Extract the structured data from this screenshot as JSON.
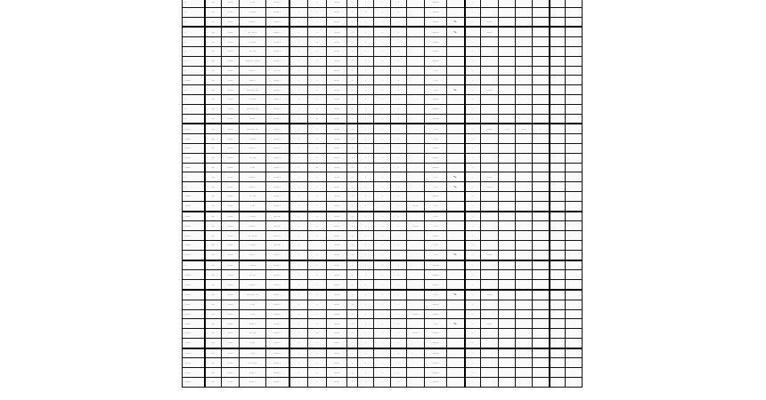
{
  "table": {
    "rows": [
      [
        "- -",
        "—",
        "——",
        "- —",
        "—— -",
        "",
        "-",
        "——",
        "-",
        "-",
        "-",
        "-",
        "",
        "——-",
        "",
        "-",
        "",
        "",
        "",
        "",
        "",
        ""
      ],
      [
        "- -",
        "—",
        "——",
        "- ——",
        "—— -",
        "-",
        "-",
        "——",
        "-",
        "-",
        "-",
        "-",
        "",
        "——-",
        "",
        "-",
        "",
        "",
        "",
        "",
        "",
        ""
      ],
      [
        "- -",
        "—",
        "——",
        "—— -",
        "—— -",
        "-",
        "-",
        "——",
        "-",
        "-",
        "-",
        "-",
        "",
        "——-",
        "%-",
        "-",
        "——",
        "",
        "",
        "",
        "",
        ""
      ],
      [
        "- -",
        "—",
        "——",
        "— ——",
        "—— -",
        "-",
        "-",
        "——",
        "-",
        "-",
        "-",
        "-",
        "",
        "——-",
        "%-",
        "",
        "——",
        "",
        "",
        "",
        "",
        ""
      ],
      [
        "- -",
        "—",
        "——",
        "- ——",
        "—— -",
        "-",
        "--",
        "——",
        "-",
        "-",
        "-",
        "-",
        "",
        "——-",
        "",
        "-",
        "",
        "",
        "",
        "",
        "",
        ""
      ],
      [
        "- -",
        "—",
        "——",
        "— —",
        "—— -",
        "-",
        "-",
        "——",
        "-",
        "-",
        "-",
        "-",
        "",
        "——-",
        "",
        "-",
        "",
        "",
        "",
        "",
        "",
        ""
      ],
      [
        "- -",
        "—",
        "——",
        "——— ——",
        "—— -",
        "-",
        "-",
        "——",
        "-",
        "-",
        "-",
        "-",
        "",
        "——-",
        "",
        "-",
        "",
        "",
        "",
        "",
        "",
        ""
      ],
      [
        "- -",
        "—",
        "——",
        "—— -",
        "— —",
        "-",
        "",
        "——",
        "-",
        "-",
        "-",
        "-",
        "",
        "- —",
        "",
        "-",
        "",
        "",
        "",
        "",
        "",
        ""
      ],
      [
        "- ——",
        "—",
        "——",
        "—— -",
        "—— -",
        "-",
        "-",
        "——",
        "-",
        "-",
        "-",
        "-",
        "",
        "- —",
        "",
        "-",
        "",
        "",
        "",
        "",
        "",
        ""
      ],
      [
        "- -",
        "—",
        "——",
        "——— —",
        "—— -",
        "-",
        "-",
        "——",
        "-",
        "-",
        "-",
        "-",
        "",
        "- —",
        "%-",
        "-",
        "——",
        "",
        "",
        "",
        "",
        ""
      ],
      [
        "- -",
        "—",
        "——",
        "- ——",
        "—— -",
        "-",
        "-",
        "——",
        "-",
        "-",
        "-",
        "-",
        "",
        "——-",
        "",
        "-",
        "",
        "",
        "",
        "",
        "",
        ""
      ],
      [
        "- -",
        "—",
        "——",
        "——— —",
        "—— -",
        "-",
        "-",
        "——",
        "-",
        "-",
        "-",
        "-",
        "",
        "——-",
        "",
        "-",
        "",
        "",
        "",
        "",
        "",
        ""
      ],
      [
        "- -",
        "—",
        "——",
        "——",
        "—— -",
        "-",
        "--",
        "——",
        "-",
        "-",
        "-",
        "-",
        "",
        "——-",
        "",
        "-",
        "",
        "",
        "",
        "",
        "",
        ""
      ],
      [
        "- ——",
        "—",
        "——",
        "——— —",
        "—— -",
        "-",
        "-",
        "——",
        "-",
        "-",
        "-",
        "-",
        "",
        "- —",
        "",
        "-",
        "——",
        "- —",
        "——",
        "-",
        "",
        ""
      ],
      [
        "- ——",
        "—",
        "——",
        "- ——",
        "—— -",
        "-",
        "-",
        "——",
        "-",
        "-",
        "-",
        "-",
        "",
        "- —",
        "",
        "-",
        "",
        "",
        "",
        "",
        "",
        ""
      ],
      [
        "- ——",
        "—",
        "——",
        "—— -",
        "—— -",
        "-",
        "-",
        "——",
        "-",
        "-",
        "-",
        "-",
        "",
        "——-",
        "",
        "-",
        "",
        "",
        "",
        "",
        "",
        ""
      ],
      [
        "- ——",
        "—",
        "——",
        "— —",
        "—— -",
        "-",
        "-",
        "——",
        "-",
        "-",
        "-",
        "-",
        "",
        "——-",
        "",
        "-",
        "",
        "",
        "",
        "",
        "",
        ""
      ],
      [
        "- ——",
        "—",
        "——",
        "- —",
        "—— -",
        "-",
        "--",
        "——",
        "-",
        "-",
        "-",
        "-",
        "",
        "——-",
        "",
        "-",
        "",
        "",
        "",
        "",
        "",
        ""
      ],
      [
        "- -",
        "—",
        "——",
        "—— -",
        "—— -",
        "-",
        "-",
        "——",
        "-",
        "-",
        "-",
        "-",
        "",
        "- —",
        "%-",
        "-",
        "——",
        "",
        "",
        "",
        "",
        ""
      ],
      [
        "- -",
        "—",
        "——",
        "—— -",
        "—— -",
        "-",
        "-",
        "——",
        "-",
        "-",
        "-",
        "-",
        "",
        "- —",
        "%-",
        "-",
        "——",
        "",
        "",
        "",
        "",
        ""
      ],
      [
        "- ——",
        "—",
        "——",
        "— —",
        "—— -",
        "-",
        "-",
        "——",
        "-",
        "-",
        "-",
        "-",
        "",
        "——-",
        "",
        "-",
        "",
        "",
        "",
        "",
        "",
        ""
      ],
      [
        "- ——",
        "—",
        "——",
        "- —",
        "—— -",
        "-",
        "-",
        "——",
        "-",
        "-",
        "-",
        "-",
        "——",
        "- —",
        "",
        "-",
        "",
        "",
        "",
        "",
        "",
        ""
      ],
      [
        "- ——",
        "—",
        "——",
        "- ——",
        "— —",
        "-",
        "-",
        "——",
        "-",
        "-",
        "-",
        "-",
        "",
        "- —",
        "",
        "-",
        "",
        "",
        "",
        "",
        "",
        ""
      ],
      [
        "- ——",
        "—",
        "——",
        "—— -",
        "— —",
        "-",
        "-",
        "——",
        "-",
        "-",
        "-",
        "-",
        "——",
        "- —",
        "",
        "-",
        "",
        "",
        "",
        "",
        "",
        ""
      ],
      [
        "- ——",
        "—",
        "——",
        "— ——",
        "—— -",
        "-",
        "-",
        "——",
        "-",
        "-",
        "-",
        "-",
        "",
        "——-",
        "",
        "-",
        "",
        "",
        "",
        "",
        "",
        ""
      ],
      [
        "- ——",
        "—",
        "——",
        "- ——",
        "— —",
        "-",
        "",
        "——",
        "-",
        "-",
        "-",
        "-",
        "",
        "- —",
        "",
        "-",
        "",
        "",
        "",
        "",
        "",
        ""
      ],
      [
        "- ——",
        "—",
        "——",
        "—— -",
        "—— -",
        "-",
        "-",
        "——",
        "-",
        "-",
        "-",
        "-",
        "",
        "- —",
        "%-",
        "-",
        "——",
        "",
        "",
        "",
        "",
        ""
      ],
      [
        "- -",
        "—",
        "——",
        "- ——",
        "—— -",
        "-",
        "-",
        "——",
        "-",
        "-",
        "-",
        "-",
        "",
        "——-",
        "",
        "-",
        "",
        "",
        "",
        "",
        "",
        ""
      ],
      [
        "- ——",
        "—",
        "——",
        "— —",
        "—— -",
        "-",
        "-",
        "——",
        "-",
        "-",
        "-",
        "-",
        "",
        "——-",
        "",
        "-",
        "",
        "",
        "",
        "",
        "",
        ""
      ],
      [
        "- ——",
        "—",
        "——",
        "—— -",
        "—— -",
        "-",
        "-",
        "——",
        "-",
        "-",
        "-",
        "-",
        "",
        "——-",
        "",
        "-",
        "",
        "",
        "",
        "",
        "",
        ""
      ],
      [
        "- ——",
        "—",
        "——",
        "——— —",
        "—— -",
        "-",
        "-",
        "——",
        "-",
        "-",
        "-",
        "-",
        "",
        "- —",
        "%-",
        "-",
        "——",
        "",
        "",
        "",
        "",
        ""
      ],
      [
        "- ——",
        "—",
        "——",
        "- —",
        "—— -",
        "-",
        "-",
        "——",
        "-",
        "-",
        "-",
        "-",
        "",
        "——-",
        "",
        "-",
        "",
        "",
        "",
        "",
        "",
        ""
      ],
      [
        "- ——",
        "—",
        "——",
        "- —",
        "—— -",
        "-",
        "-",
        "——",
        "-",
        "-",
        "-",
        "-",
        "——",
        "——-",
        "",
        "-",
        "",
        "",
        "",
        "",
        "",
        ""
      ],
      [
        "- ——",
        "—",
        "——",
        "—— -",
        "—— -",
        "-",
        "-",
        "——",
        "-",
        "-",
        "-",
        "-",
        "",
        "- —",
        "%-",
        "-",
        "——",
        "",
        "",
        "",
        "",
        ""
      ],
      [
        "- ——",
        "—",
        "——",
        "— —",
        "—— -",
        "-",
        "--",
        "——",
        "-",
        "-",
        "-",
        "-",
        "——",
        "——-",
        "",
        "-",
        "",
        "",
        "",
        "",
        "",
        ""
      ],
      [
        "- ——",
        "—",
        "——",
        "- —",
        "—— -",
        "-",
        "-",
        "——",
        "-",
        "-",
        "-",
        "-",
        "",
        "——-",
        "",
        "-",
        "",
        "",
        "",
        "",
        "",
        ""
      ],
      [
        "- ——",
        "—",
        "——",
        "- —",
        "—— -",
        "-",
        "-",
        "——",
        "-",
        "-",
        "-",
        "-",
        "",
        "——-",
        "",
        "-",
        "",
        "",
        "",
        "",
        "",
        ""
      ],
      [
        "- ——",
        "—",
        "——",
        "— ——",
        "—— -",
        "-",
        "-",
        "——",
        "-",
        "-",
        "-",
        "-",
        "",
        "——-",
        "",
        "-",
        "",
        "",
        "",
        "",
        "",
        ""
      ],
      [
        "- ——",
        "—",
        "——",
        "—— -",
        "—— -",
        "-",
        "-",
        "——",
        "-",
        "-",
        "-",
        "-",
        "",
        "——-",
        "",
        "-",
        "",
        "",
        "",
        "",
        "",
        ""
      ],
      [
        "- ——",
        "—",
        "——",
        "—— -",
        "—— -",
        "-",
        "-",
        "——",
        "-",
        "-",
        "-",
        "-",
        "",
        "——-",
        "",
        "-",
        "",
        "",
        "",
        "",
        "",
        ""
      ]
    ]
  }
}
